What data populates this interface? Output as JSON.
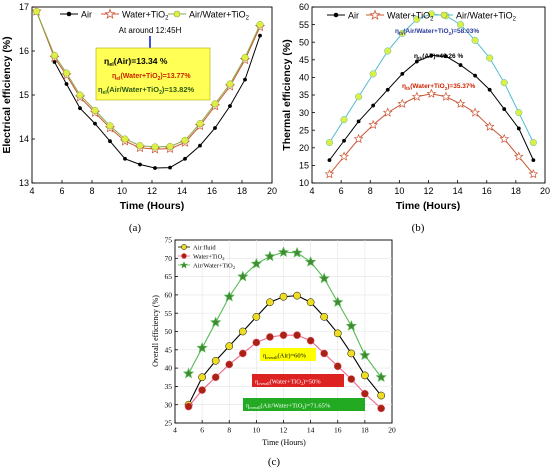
{
  "chart_data": [
    {
      "type": "line",
      "caption": "(a)",
      "xlabel": "Time (Hours)",
      "ylabel": "Electrical efficiency (%)",
      "xlim": [
        4,
        20
      ],
      "ylim": [
        13,
        17
      ],
      "xticks": [
        4,
        6,
        8,
        10,
        12,
        14,
        16,
        18,
        20
      ],
      "yticks": [
        13,
        14,
        15,
        16,
        17
      ],
      "legend_position": "top",
      "series": [
        {
          "name": "Air",
          "marker": "circle",
          "color": "#000000",
          "marker_fill": "#000000",
          "x": [
            5.5,
            6.3,
            7.2,
            8.2,
            9.2,
            10.2,
            11.2,
            12.2,
            13.2,
            14.2,
            15.2,
            16.2,
            17.2,
            18.2,
            19.2
          ],
          "y": [
            15.75,
            15.25,
            14.7,
            14.35,
            13.95,
            13.55,
            13.42,
            13.34,
            13.35,
            13.55,
            13.85,
            14.25,
            14.75,
            15.35,
            16.35
          ]
        },
        {
          "name": "Water+TiO2",
          "marker": "star",
          "color": "#cc5533",
          "marker_fill": "#ffffff",
          "x": [
            4.3,
            5.5,
            6.3,
            7.2,
            8.2,
            9.2,
            10.2,
            11.2,
            12.2,
            13.2,
            14.2,
            15.2,
            16.2,
            17.2,
            18.2,
            19.2
          ],
          "y": [
            16.9,
            15.85,
            15.45,
            14.95,
            14.6,
            14.25,
            13.95,
            13.8,
            13.77,
            13.78,
            13.92,
            14.3,
            14.75,
            15.2,
            15.8,
            16.55
          ]
        },
        {
          "name": "Air/Water+TiO2",
          "marker": "circle",
          "color": "#88aa44",
          "marker_fill": "#ddee44",
          "x": [
            4.3,
            5.5,
            6.3,
            7.2,
            8.2,
            9.2,
            10.2,
            11.2,
            12.2,
            13.2,
            14.2,
            15.2,
            16.2,
            17.2,
            18.2,
            19.2
          ],
          "y": [
            16.9,
            15.9,
            15.5,
            15.0,
            14.65,
            14.3,
            14.0,
            13.85,
            13.82,
            13.83,
            13.97,
            14.35,
            14.8,
            15.25,
            15.85,
            16.6
          ]
        }
      ],
      "annotation_top": "At around 12:45H",
      "annotations": [
        "ηel(Air)=13.34 %",
        "ηel(Water+TiO2)=13.77%",
        "ηel(Air/Water+TiO2)=13.82%"
      ]
    },
    {
      "type": "line",
      "caption": "(b)",
      "xlabel": "Time (Hours)",
      "ylabel": "Thermal efficiency (%)",
      "xlim": [
        4,
        20
      ],
      "ylim": [
        10,
        60
      ],
      "xticks": [
        4,
        6,
        8,
        10,
        12,
        14,
        16,
        18,
        20
      ],
      "yticks": [
        10,
        15,
        20,
        25,
        30,
        35,
        40,
        45,
        50,
        55,
        60
      ],
      "legend_position": "top",
      "series": [
        {
          "name": "Air",
          "marker": "circle",
          "color": "#000000",
          "marker_fill": "#000000",
          "x": [
            5.2,
            6.2,
            7.2,
            8.2,
            9.2,
            10.2,
            11.2,
            12.2,
            13.2,
            14.2,
            15.2,
            16.2,
            17.2,
            18.2,
            19.2
          ],
          "y": [
            16.5,
            22.0,
            27.5,
            32.0,
            36.5,
            41.0,
            44.5,
            46.26,
            46.0,
            43.5,
            40.5,
            36.5,
            31.0,
            25.5,
            16.5
          ]
        },
        {
          "name": "Water+TiO2",
          "marker": "star",
          "color": "#cc5533",
          "marker_fill": "#ffffff",
          "x": [
            5.2,
            6.2,
            7.2,
            8.2,
            9.2,
            10.2,
            11.2,
            12.2,
            13.2,
            14.2,
            15.2,
            16.2,
            17.2,
            18.2,
            19.2
          ],
          "y": [
            12.5,
            17.5,
            22.5,
            26.5,
            30.0,
            32.5,
            34.5,
            35.37,
            34.5,
            32.5,
            30.0,
            26.0,
            22.5,
            17.5,
            12.5
          ]
        },
        {
          "name": "Air/Water+TiO2",
          "marker": "circle",
          "color": "#55bbcc",
          "marker_fill": "#ddee44",
          "x": [
            5.2,
            6.2,
            7.2,
            8.2,
            9.2,
            10.2,
            11.2,
            12.2,
            13.2,
            14.2,
            15.2,
            16.2,
            17.2,
            18.2,
            19.2
          ],
          "y": [
            21.5,
            28.0,
            34.5,
            41.0,
            47.5,
            52.5,
            56.5,
            58.03,
            57.5,
            55.0,
            50.5,
            45.5,
            38.5,
            30.0,
            21.5
          ]
        }
      ],
      "annotations": [
        "ηth(Air/Water+TiO2)=58.03%",
        "ηth(Air)=46.26 %",
        "ηth(Water+TiO2)=35.37%"
      ]
    },
    {
      "type": "line",
      "caption": "(c)",
      "xlabel": "Time (Hours)",
      "ylabel": "Overall efficiency (%)",
      "xlim": [
        4,
        20
      ],
      "ylim": [
        25,
        75
      ],
      "xticks": [
        4,
        6,
        8,
        10,
        12,
        14,
        16,
        18,
        20
      ],
      "yticks": [
        25,
        30,
        35,
        40,
        45,
        50,
        55,
        60,
        65,
        70,
        75
      ],
      "legend_position": "top-left",
      "series": [
        {
          "name": "Air fluid",
          "marker": "circle",
          "color": "#000000",
          "marker_fill": "#eedd22",
          "x": [
            5.0,
            6.0,
            7.0,
            8.0,
            9.0,
            10.0,
            11.0,
            12.0,
            13.0,
            14.0,
            15.0,
            16.0,
            17.0,
            18.0,
            19.2
          ],
          "y": [
            30.0,
            37.5,
            42.0,
            46.0,
            50.0,
            54.0,
            58.0,
            59.5,
            59.8,
            58.0,
            54.0,
            49.5,
            44.0,
            38.0,
            32.5
          ]
        },
        {
          "name": "Water+TiO2",
          "marker": "circle",
          "color": "#ee6688",
          "marker_fill": "#aa2211",
          "x": [
            5.0,
            6.0,
            7.0,
            8.0,
            9.0,
            10.0,
            11.0,
            12.0,
            13.0,
            14.0,
            15.0,
            16.0,
            17.0,
            18.0,
            19.2
          ],
          "y": [
            29.5,
            34.0,
            37.5,
            41.0,
            44.0,
            47.0,
            48.5,
            49.0,
            49.0,
            47.5,
            44.0,
            40.5,
            37.0,
            33.0,
            29.0
          ]
        },
        {
          "name": "Air/Water+TiO2",
          "marker": "star",
          "color": "#55bb55",
          "marker_fill": "#448833",
          "x": [
            5.0,
            6.0,
            7.0,
            8.0,
            9.0,
            10.0,
            11.0,
            12.0,
            13.0,
            14.0,
            15.0,
            16.0,
            17.0,
            18.0,
            19.2
          ],
          "y": [
            38.5,
            45.5,
            52.5,
            59.5,
            65.0,
            68.5,
            70.5,
            71.65,
            71.5,
            69.0,
            64.5,
            58.0,
            51.5,
            43.5,
            37.5
          ]
        }
      ],
      "annotations": [
        {
          "text": "ηoverall(Air)=60%",
          "fill": "#ffff00",
          "text_color": "#000000"
        },
        {
          "text": "ηoverall(Water+TiO2)=50%",
          "fill": "#dd2222",
          "text_color": "#ffffff"
        },
        {
          "text": "ηoverall(Air/Water+TiO2)=71.65%",
          "fill": "#22aa22",
          "text_color": "#ffffff"
        }
      ]
    }
  ]
}
